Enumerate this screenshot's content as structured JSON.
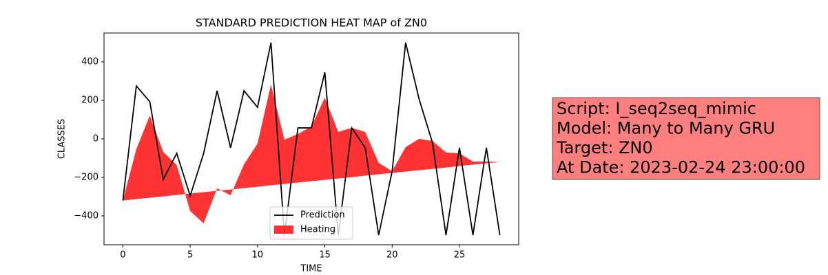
{
  "chart_data": {
    "type": "line-fill",
    "title": "STANDARD PREDICTION HEAT MAP of ZN0",
    "xlabel": "TIME",
    "ylabel": "CLASSES",
    "x": [
      0,
      1,
      2,
      3,
      4,
      5,
      6,
      7,
      8,
      9,
      10,
      11,
      12,
      13,
      14,
      15,
      16,
      17,
      18,
      19,
      20,
      21,
      22,
      23,
      24,
      25,
      26,
      27,
      28
    ],
    "series": [
      {
        "name": "Prediction",
        "color": "#000000",
        "values": [
          -320,
          275,
          193,
          -211,
          -75,
          -296,
          -75,
          250,
          -46,
          250,
          164,
          500,
          -500,
          57,
          57,
          346,
          -500,
          57,
          -46,
          -500,
          -168,
          500,
          207,
          -21,
          -500,
          -46,
          -500,
          -46,
          -500
        ]
      },
      {
        "name": "Heating",
        "color": "#ff0000",
        "values": [
          -320,
          -54,
          121,
          -68,
          -136,
          -375,
          -439,
          -257,
          -293,
          -132,
          -25,
          282,
          -4,
          25,
          64,
          214,
          36,
          57,
          36,
          -125,
          -168,
          -43,
          0,
          -11,
          -71,
          -75,
          -118,
          -118,
          -120
        ],
        "base": [
          -320,
          -313,
          -306,
          -299,
          -291,
          -284,
          -277,
          -270,
          -263,
          -256,
          -249,
          -241,
          -234,
          -227,
          -220,
          -213,
          -206,
          -199,
          -191,
          -184,
          -177,
          -170,
          -163,
          -156,
          -149,
          -141,
          -134,
          -127,
          -120
        ]
      }
    ],
    "xlim": [
      -1.4,
      29.4
    ],
    "ylim": [
      -550,
      550
    ],
    "xticks": [
      0,
      5,
      10,
      15,
      20,
      25
    ],
    "yticks": [
      {
        "value": -400,
        "label": "−400"
      },
      {
        "value": -200,
        "label": "−200"
      },
      0,
      200,
      400
    ],
    "legend": "lower center",
    "annotation": [
      "Script: I_seq2seq_mimic",
      "Model: Many to Many GRU",
      "Target: ZN0",
      "At Date: 2023-02-24 23:00:00"
    ]
  }
}
